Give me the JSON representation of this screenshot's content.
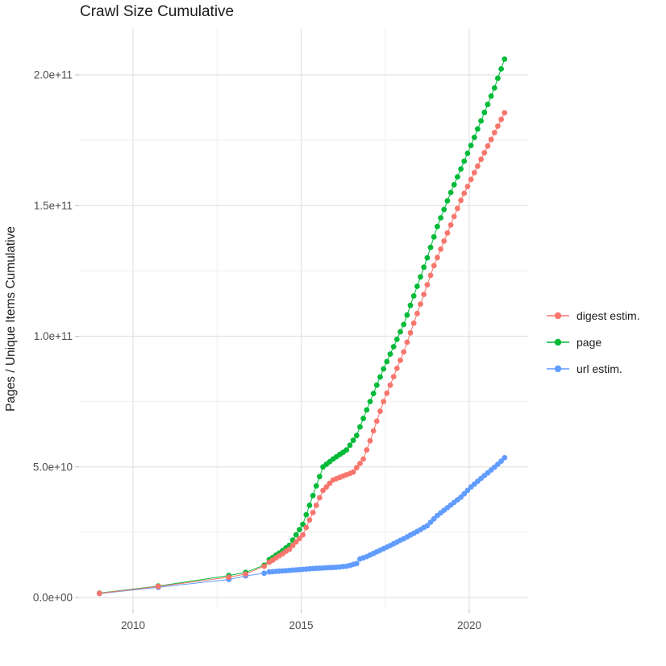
{
  "title": "Crawl Size Cumulative",
  "legend": {
    "position": "right",
    "items": [
      {
        "label": "digest estim.",
        "color": "#F8766D"
      },
      {
        "label": "page",
        "color": "#00BA38"
      },
      {
        "label": "url estim.",
        "color": "#619CFF"
      }
    ]
  },
  "colors": {
    "background": "#ffffff",
    "grid_major": "#e2e2e2",
    "grid_minor": "#efefef",
    "tick_text": "#4d4d4d",
    "title_text": "#1c1c1c"
  },
  "chart_data": {
    "type": "scatter",
    "title": "Crawl Size Cumulative",
    "xlabel": "",
    "ylabel": "Pages / Unique Items Cumulative",
    "values_unit": "items, stored as multiples of 1e9",
    "unit_multiplier": 1000000000,
    "xlim": [
      2008.4,
      2021.9
    ],
    "ylim_e9": [
      -5,
      218
    ],
    "grid": true,
    "legend_position": "right",
    "x_axis": {
      "tick_values": [
        2010,
        2015,
        2020
      ],
      "tick_labels": [
        "2010",
        "2015",
        "2020"
      ],
      "minor_gridlines": [
        2012.5,
        2017.5
      ]
    },
    "y_axis": {
      "tick_values_e9": [
        0,
        50,
        100,
        150,
        200
      ],
      "tick_labels": [
        "0.0e+00",
        "5.0e+10",
        "1.0e+11",
        "1.5e+11",
        "2.0e+11"
      ],
      "minor_gridlines_e9": [
        25,
        75,
        125,
        175
      ]
    },
    "series": [
      {
        "name": "digest estim.",
        "color": "#F8766D",
        "points": [
          [
            2009.0,
            1.6
          ],
          [
            2010.75,
            4.25
          ],
          [
            2012.85,
            7.8
          ],
          [
            2013.35,
            9.0
          ],
          [
            2013.9,
            12.0
          ],
          [
            2014.05,
            13.5
          ],
          [
            2014.15,
            14.3
          ],
          [
            2014.25,
            15.2
          ],
          [
            2014.35,
            16.0
          ],
          [
            2014.45,
            16.8
          ],
          [
            2014.55,
            17.7
          ],
          [
            2014.65,
            18.5
          ],
          [
            2014.75,
            19.9
          ],
          [
            2014.85,
            21.3
          ],
          [
            2014.95,
            22.6
          ],
          [
            2015.05,
            24.0
          ],
          [
            2015.15,
            26.8
          ],
          [
            2015.25,
            29.7
          ],
          [
            2015.35,
            32.5
          ],
          [
            2015.45,
            35.3
          ],
          [
            2015.55,
            38.2
          ],
          [
            2015.65,
            41.0
          ],
          [
            2015.75,
            42.3
          ],
          [
            2015.85,
            43.7
          ],
          [
            2015.95,
            45.0
          ],
          [
            2016.05,
            45.5
          ],
          [
            2016.15,
            46.0
          ],
          [
            2016.25,
            46.5
          ],
          [
            2016.35,
            47.0
          ],
          [
            2016.45,
            47.5
          ],
          [
            2016.55,
            48.0
          ],
          [
            2016.65,
            49.7
          ],
          [
            2016.75,
            51.3
          ],
          [
            2016.85,
            53.0
          ],
          [
            2016.95,
            56.5
          ],
          [
            2017.05,
            60.0
          ],
          [
            2017.15,
            63.8
          ],
          [
            2017.25,
            67.5
          ],
          [
            2017.35,
            71.3
          ],
          [
            2017.45,
            75.0
          ],
          [
            2017.55,
            78.2
          ],
          [
            2017.65,
            81.3
          ],
          [
            2017.75,
            84.5
          ],
          [
            2017.85,
            87.7
          ],
          [
            2017.95,
            90.8
          ],
          [
            2018.05,
            94.0
          ],
          [
            2018.15,
            97.7
          ],
          [
            2018.25,
            101.3
          ],
          [
            2018.35,
            105.0
          ],
          [
            2018.45,
            108.7
          ],
          [
            2018.55,
            112.3
          ],
          [
            2018.65,
            116.0
          ],
          [
            2018.75,
            119.7
          ],
          [
            2018.85,
            123.3
          ],
          [
            2018.95,
            127.0
          ],
          [
            2019.05,
            130.1
          ],
          [
            2019.15,
            133.3
          ],
          [
            2019.25,
            136.4
          ],
          [
            2019.35,
            139.5
          ],
          [
            2019.45,
            142.6
          ],
          [
            2019.55,
            145.8
          ],
          [
            2019.65,
            148.9
          ],
          [
            2019.75,
            152.0
          ],
          [
            2019.85,
            154.7
          ],
          [
            2019.95,
            157.3
          ],
          [
            2020.05,
            160.0
          ],
          [
            2020.15,
            162.6
          ],
          [
            2020.25,
            165.1
          ],
          [
            2020.35,
            167.7
          ],
          [
            2020.45,
            170.2
          ],
          [
            2020.55,
            172.8
          ],
          [
            2020.65,
            175.3
          ],
          [
            2020.75,
            177.9
          ],
          [
            2020.85,
            180.4
          ],
          [
            2020.95,
            183.0
          ],
          [
            2021.05,
            185.5
          ]
        ]
      },
      {
        "name": "page",
        "color": "#00BA38",
        "points": [
          [
            2009.0,
            1.7
          ],
          [
            2010.75,
            4.4
          ],
          [
            2012.85,
            8.4
          ],
          [
            2013.35,
            9.6
          ],
          [
            2013.9,
            12.4
          ],
          [
            2014.05,
            14.5
          ],
          [
            2014.15,
            15.3
          ],
          [
            2014.25,
            16.2
          ],
          [
            2014.35,
            17.0
          ],
          [
            2014.45,
            18.0
          ],
          [
            2014.55,
            19.0
          ],
          [
            2014.65,
            20.0
          ],
          [
            2014.75,
            22.0
          ],
          [
            2014.85,
            24.0
          ],
          [
            2014.95,
            26.0
          ],
          [
            2015.05,
            28.0
          ],
          [
            2015.15,
            31.7
          ],
          [
            2015.25,
            35.3
          ],
          [
            2015.35,
            39.0
          ],
          [
            2015.45,
            42.7
          ],
          [
            2015.55,
            46.3
          ],
          [
            2015.65,
            50.0
          ],
          [
            2015.75,
            51.0
          ],
          [
            2015.85,
            52.0
          ],
          [
            2015.95,
            53.0
          ],
          [
            2016.05,
            53.9
          ],
          [
            2016.15,
            54.8
          ],
          [
            2016.25,
            55.6
          ],
          [
            2016.35,
            56.5
          ],
          [
            2016.45,
            58.3
          ],
          [
            2016.55,
            60.2
          ],
          [
            2016.65,
            62.0
          ],
          [
            2016.75,
            65.3
          ],
          [
            2016.85,
            68.5
          ],
          [
            2016.95,
            71.8
          ],
          [
            2017.05,
            75.0
          ],
          [
            2017.15,
            78.1
          ],
          [
            2017.25,
            81.3
          ],
          [
            2017.35,
            84.4
          ],
          [
            2017.45,
            87.5
          ],
          [
            2017.55,
            90.3
          ],
          [
            2017.65,
            93.2
          ],
          [
            2017.75,
            96.0
          ],
          [
            2017.85,
            98.8
          ],
          [
            2017.95,
            101.7
          ],
          [
            2018.05,
            104.5
          ],
          [
            2018.15,
            108.1
          ],
          [
            2018.25,
            111.8
          ],
          [
            2018.35,
            115.4
          ],
          [
            2018.45,
            119.1
          ],
          [
            2018.55,
            122.7
          ],
          [
            2018.65,
            126.4
          ],
          [
            2018.75,
            130.0
          ],
          [
            2018.85,
            134.0
          ],
          [
            2018.95,
            138.0
          ],
          [
            2019.05,
            142.0
          ],
          [
            2019.15,
            145.3
          ],
          [
            2019.25,
            148.5
          ],
          [
            2019.35,
            151.8
          ],
          [
            2019.45,
            155.0
          ],
          [
            2019.55,
            158.0
          ],
          [
            2019.65,
            161.0
          ],
          [
            2019.75,
            164.0
          ],
          [
            2019.85,
            167.0
          ],
          [
            2019.95,
            170.0
          ],
          [
            2020.05,
            173.0
          ],
          [
            2020.15,
            176.1
          ],
          [
            2020.25,
            179.3
          ],
          [
            2020.35,
            182.4
          ],
          [
            2020.45,
            185.6
          ],
          [
            2020.55,
            188.7
          ],
          [
            2020.65,
            191.9
          ],
          [
            2020.75,
            195.0
          ],
          [
            2020.85,
            198.7
          ],
          [
            2020.95,
            202.3
          ],
          [
            2021.05,
            206.0
          ]
        ]
      },
      {
        "name": "url estim.",
        "color": "#619CFF",
        "points": [
          [
            2009.0,
            1.5
          ],
          [
            2010.75,
            3.9
          ],
          [
            2012.85,
            6.9
          ],
          [
            2013.35,
            8.3
          ],
          [
            2013.9,
            9.3
          ],
          [
            2014.05,
            9.8
          ],
          [
            2014.15,
            9.9
          ],
          [
            2014.25,
            10.0
          ],
          [
            2014.35,
            10.1
          ],
          [
            2014.45,
            10.2
          ],
          [
            2014.55,
            10.3
          ],
          [
            2014.65,
            10.4
          ],
          [
            2014.75,
            10.5
          ],
          [
            2014.85,
            10.6
          ],
          [
            2014.95,
            10.7
          ],
          [
            2015.05,
            10.8
          ],
          [
            2015.15,
            10.9
          ],
          [
            2015.25,
            11.0
          ],
          [
            2015.35,
            11.1
          ],
          [
            2015.45,
            11.2
          ],
          [
            2015.55,
            11.25
          ],
          [
            2015.65,
            11.3
          ],
          [
            2015.75,
            11.4
          ],
          [
            2015.85,
            11.45
          ],
          [
            2015.95,
            11.5
          ],
          [
            2016.05,
            11.6
          ],
          [
            2016.15,
            11.7
          ],
          [
            2016.25,
            11.85
          ],
          [
            2016.35,
            12.0
          ],
          [
            2016.45,
            12.3
          ],
          [
            2016.55,
            12.7
          ],
          [
            2016.65,
            13.0
          ],
          [
            2016.75,
            14.8
          ],
          [
            2016.85,
            15.2
          ],
          [
            2016.95,
            15.7
          ],
          [
            2017.05,
            16.3
          ],
          [
            2017.15,
            16.9
          ],
          [
            2017.25,
            17.5
          ],
          [
            2017.35,
            18.1
          ],
          [
            2017.45,
            18.7
          ],
          [
            2017.55,
            19.3
          ],
          [
            2017.65,
            19.9
          ],
          [
            2017.75,
            20.6
          ],
          [
            2017.85,
            21.2
          ],
          [
            2017.95,
            21.9
          ],
          [
            2018.05,
            22.5
          ],
          [
            2018.15,
            23.2
          ],
          [
            2018.25,
            23.9
          ],
          [
            2018.35,
            24.6
          ],
          [
            2018.45,
            25.3
          ],
          [
            2018.55,
            26.0
          ],
          [
            2018.65,
            26.8
          ],
          [
            2018.75,
            27.5
          ],
          [
            2018.85,
            28.8
          ],
          [
            2018.95,
            30.1
          ],
          [
            2019.05,
            31.4
          ],
          [
            2019.15,
            32.4
          ],
          [
            2019.25,
            33.4
          ],
          [
            2019.35,
            34.4
          ],
          [
            2019.45,
            35.4
          ],
          [
            2019.55,
            36.4
          ],
          [
            2019.65,
            37.4
          ],
          [
            2019.75,
            38.4
          ],
          [
            2019.85,
            39.7
          ],
          [
            2019.95,
            41.0
          ],
          [
            2020.05,
            42.3
          ],
          [
            2020.15,
            43.4
          ],
          [
            2020.25,
            44.5
          ],
          [
            2020.35,
            45.6
          ],
          [
            2020.45,
            46.7
          ],
          [
            2020.55,
            47.7
          ],
          [
            2020.65,
            48.8
          ],
          [
            2020.75,
            49.9
          ],
          [
            2020.85,
            51.0
          ],
          [
            2020.95,
            52.2
          ],
          [
            2021.05,
            53.5
          ]
        ]
      }
    ]
  }
}
